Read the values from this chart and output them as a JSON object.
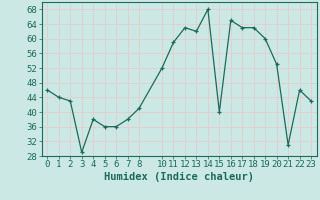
{
  "x": [
    0,
    1,
    2,
    3,
    4,
    5,
    6,
    7,
    8,
    10,
    11,
    12,
    13,
    14,
    15,
    16,
    17,
    18,
    19,
    20,
    21,
    22,
    23
  ],
  "y": [
    46,
    44,
    43,
    29,
    38,
    36,
    36,
    38,
    41,
    52,
    59,
    63,
    62,
    68,
    40,
    65,
    63,
    63,
    60,
    53,
    31,
    46,
    43
  ],
  "line_color": "#1a6b5a",
  "bg_color": "#cce8e4",
  "grid_color": "#e8c8c8",
  "xlabel": "Humidex (Indice chaleur)",
  "ylim": [
    28,
    70
  ],
  "yticks": [
    28,
    32,
    36,
    40,
    44,
    48,
    52,
    56,
    60,
    64,
    68
  ],
  "xticks": [
    0,
    1,
    2,
    3,
    4,
    5,
    6,
    7,
    8,
    10,
    11,
    12,
    13,
    14,
    15,
    16,
    17,
    18,
    19,
    20,
    21,
    22,
    23
  ],
  "title_color": "#1a6b5a",
  "font_size": 6.5
}
